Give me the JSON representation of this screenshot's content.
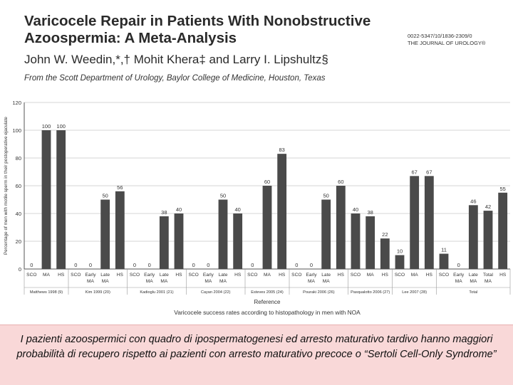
{
  "header": {
    "title_line1": "Varicocele Repair in Patients With Nonobstructive",
    "title_line2": "Azoospermia: A Meta-Analysis",
    "authors": "John W. Weedin,*,† Mohit Khera‡ and Larry I. Lipshultz§",
    "affiliation": "From the Scott Department of Urology, Baylor College of Medicine, Houston, Texas",
    "journal_code": "0022-5347/10/1836-2309/0",
    "journal_name": "THE JOURNAL OF UROLOGY®"
  },
  "chart_data": {
    "type": "bar",
    "title": "Varicocele success rates according to histopathology in men with NOA",
    "xlabel": "Reference",
    "ylabel": "Percentage of men with motile sperm in their postoperative ejaculate",
    "ylim": [
      0,
      120
    ],
    "yticks": [
      0,
      20,
      40,
      60,
      80,
      100,
      120
    ],
    "grid": true,
    "groups": [
      {
        "name": "Matthews 1998 (9)",
        "bars": [
          {
            "label": "SCO",
            "value": 0
          },
          {
            "label": "MA",
            "value": 100
          },
          {
            "label": "HS",
            "value": 100
          }
        ]
      },
      {
        "name": "Kim 1999 (20)",
        "bars": [
          {
            "label": "SCO",
            "value": 0
          },
          {
            "label": "Early MA",
            "value": 0
          },
          {
            "label": "Late MA",
            "value": 50
          },
          {
            "label": "HS",
            "value": 56
          }
        ]
      },
      {
        "name": "Kadioglu 2001 (21)",
        "bars": [
          {
            "label": "SCO",
            "value": 0
          },
          {
            "label": "Early MA",
            "value": 0
          },
          {
            "label": "Late MA",
            "value": 38
          },
          {
            "label": "HS",
            "value": 40
          }
        ]
      },
      {
        "name": "Cayan 2004 (22)",
        "bars": [
          {
            "label": "SCO",
            "value": 0
          },
          {
            "label": "Early MA",
            "value": 0
          },
          {
            "label": "Late MA",
            "value": 50
          },
          {
            "label": "HS",
            "value": 40
          }
        ]
      },
      {
        "name": "Esteves 2005 (24)",
        "bars": [
          {
            "label": "SCO",
            "value": 0
          },
          {
            "label": "MA",
            "value": 60
          },
          {
            "label": "HS",
            "value": 83
          }
        ]
      },
      {
        "name": "Pouraki 2006 (26)",
        "bars": [
          {
            "label": "SCO",
            "value": 0
          },
          {
            "label": "Early MA",
            "value": 0
          },
          {
            "label": "Late MA",
            "value": 50
          },
          {
            "label": "HS",
            "value": 60
          }
        ]
      },
      {
        "name": "Pasqualotto 2006 (27)",
        "bars": [
          {
            "label": "SCO",
            "value": 40
          },
          {
            "label": "MA",
            "value": 38
          },
          {
            "label": "HS",
            "value": 22
          }
        ]
      },
      {
        "name": "Lee 2007 (28)",
        "bars": [
          {
            "label": "SCO",
            "value": 10
          },
          {
            "label": "MA",
            "value": 67
          },
          {
            "label": "HS",
            "value": 67
          }
        ]
      },
      {
        "name": "Total",
        "bars": [
          {
            "label": "SCO",
            "value": 11
          },
          {
            "label": "Early MA",
            "value": 0
          },
          {
            "label": "Late MA",
            "value": 46
          },
          {
            "label": "Total MA",
            "value": 42
          },
          {
            "label": "HS",
            "value": 55
          }
        ]
      }
    ],
    "colors": {
      "bar": "#4a4a4a",
      "grid": "#c8c8c8",
      "axis": "#555555",
      "text": "#333333"
    }
  },
  "caption": {
    "text": "I pazienti azoospermici con quadro di ipospermatogenesi ed arresto maturativo tardivo hanno maggiori probabilità di recupero rispetto ai pazienti con arresto maturativo precoce o “Sertoli Cell-Only Syndrome”",
    "background": "#f9d8d8"
  }
}
